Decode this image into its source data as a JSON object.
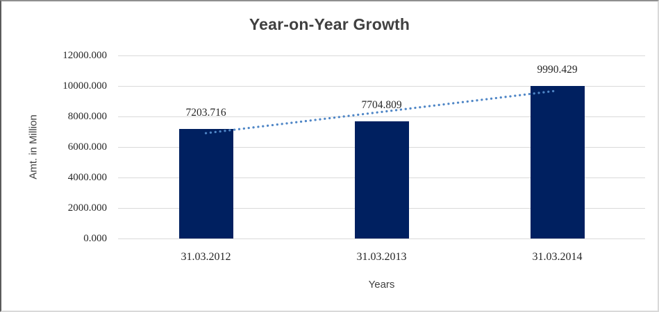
{
  "chart_data": {
    "type": "bar",
    "title": "Year-on-Year Growth",
    "xlabel": "Years",
    "ylabel": "Amt. in Million",
    "categories": [
      "31.03.2012",
      "31.03.2013",
      "31.03.2014"
    ],
    "values": [
      7203.716,
      7704.809,
      9990.429
    ],
    "data_labels": [
      "7203.716",
      "7704.809",
      "9990.429"
    ],
    "ylim": [
      0,
      12000
    ],
    "ytick_step": 2000,
    "ytick_decimals": 3,
    "grid": true,
    "legend_position": "none",
    "colors": {
      "bar": "#002060",
      "trendline": "#4f86c6",
      "gridline": "#d9d9d9",
      "title_text": "#404040",
      "number_text": "#262626"
    },
    "trendline": {
      "kind": "linear",
      "style": "dotted"
    }
  }
}
